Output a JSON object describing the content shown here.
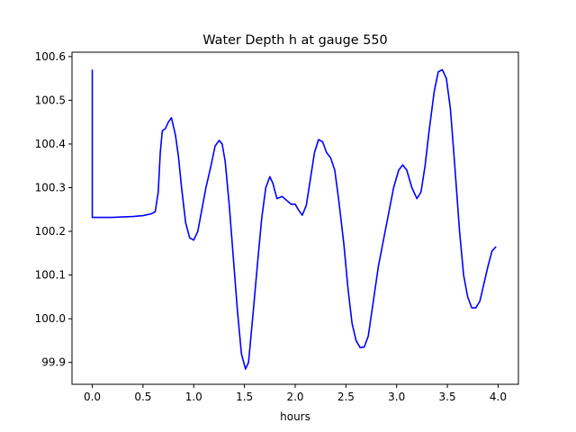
{
  "chart_data": {
    "type": "line",
    "title": "Water Depth h at gauge 550",
    "xlabel": "hours",
    "ylabel": "",
    "xlim": [
      -0.2,
      4.2
    ],
    "ylim": [
      99.85,
      100.61
    ],
    "x_ticks": [
      0.0,
      0.5,
      1.0,
      1.5,
      2.0,
      2.5,
      3.0,
      3.5,
      4.0
    ],
    "x_tick_labels": [
      "0.0",
      "0.5",
      "1.0",
      "1.5",
      "2.0",
      "2.5",
      "3.0",
      "3.5",
      "4.0"
    ],
    "y_ticks": [
      99.9,
      100.0,
      100.1,
      100.2,
      100.3,
      100.4,
      100.5,
      100.6
    ],
    "y_tick_labels": [
      "99.9",
      "100.0",
      "100.1",
      "100.2",
      "100.3",
      "100.4",
      "100.5",
      "100.6"
    ],
    "grid": false,
    "series": [
      {
        "color": "#0000ff",
        "points": [
          [
            0.0,
            100.57
          ],
          [
            0.0,
            100.232
          ],
          [
            0.2,
            100.232
          ],
          [
            0.4,
            100.234
          ],
          [
            0.5,
            100.236
          ],
          [
            0.58,
            100.24
          ],
          [
            0.62,
            100.245
          ],
          [
            0.65,
            100.29
          ],
          [
            0.67,
            100.38
          ],
          [
            0.69,
            100.43
          ],
          [
            0.72,
            100.435
          ],
          [
            0.75,
            100.45
          ],
          [
            0.78,
            100.46
          ],
          [
            0.82,
            100.42
          ],
          [
            0.85,
            100.37
          ],
          [
            0.88,
            100.3
          ],
          [
            0.92,
            100.22
          ],
          [
            0.96,
            100.185
          ],
          [
            1.0,
            100.18
          ],
          [
            1.04,
            100.2
          ],
          [
            1.08,
            100.25
          ],
          [
            1.12,
            100.3
          ],
          [
            1.17,
            100.35
          ],
          [
            1.21,
            100.395
          ],
          [
            1.25,
            100.408
          ],
          [
            1.28,
            100.4
          ],
          [
            1.31,
            100.36
          ],
          [
            1.35,
            100.26
          ],
          [
            1.39,
            100.14
          ],
          [
            1.43,
            100.02
          ],
          [
            1.47,
            99.92
          ],
          [
            1.51,
            99.885
          ],
          [
            1.54,
            99.9
          ],
          [
            1.58,
            100.0
          ],
          [
            1.63,
            100.13
          ],
          [
            1.67,
            100.23
          ],
          [
            1.71,
            100.3
          ],
          [
            1.75,
            100.325
          ],
          [
            1.78,
            100.31
          ],
          [
            1.82,
            100.275
          ],
          [
            1.87,
            100.28
          ],
          [
            1.92,
            100.27
          ],
          [
            1.96,
            100.262
          ],
          [
            2.0,
            100.262
          ],
          [
            2.03,
            100.25
          ],
          [
            2.07,
            100.237
          ],
          [
            2.11,
            100.26
          ],
          [
            2.15,
            100.32
          ],
          [
            2.19,
            100.38
          ],
          [
            2.23,
            100.41
          ],
          [
            2.27,
            100.405
          ],
          [
            2.31,
            100.38
          ],
          [
            2.35,
            100.368
          ],
          [
            2.39,
            100.34
          ],
          [
            2.43,
            100.27
          ],
          [
            2.48,
            100.17
          ],
          [
            2.52,
            100.07
          ],
          [
            2.56,
            99.99
          ],
          [
            2.6,
            99.95
          ],
          [
            2.64,
            99.934
          ],
          [
            2.68,
            99.935
          ],
          [
            2.72,
            99.96
          ],
          [
            2.77,
            100.04
          ],
          [
            2.82,
            100.12
          ],
          [
            2.87,
            100.18
          ],
          [
            2.92,
            100.24
          ],
          [
            2.97,
            100.3
          ],
          [
            3.02,
            100.34
          ],
          [
            3.06,
            100.352
          ],
          [
            3.1,
            100.34
          ],
          [
            3.15,
            100.3
          ],
          [
            3.2,
            100.275
          ],
          [
            3.24,
            100.29
          ],
          [
            3.28,
            100.35
          ],
          [
            3.32,
            100.43
          ],
          [
            3.37,
            100.52
          ],
          [
            3.41,
            100.565
          ],
          [
            3.45,
            100.57
          ],
          [
            3.49,
            100.55
          ],
          [
            3.53,
            100.48
          ],
          [
            3.57,
            100.36
          ],
          [
            3.62,
            100.2
          ],
          [
            3.66,
            100.1
          ],
          [
            3.7,
            100.05
          ],
          [
            3.74,
            100.025
          ],
          [
            3.78,
            100.025
          ],
          [
            3.82,
            100.04
          ],
          [
            3.86,
            100.08
          ],
          [
            3.9,
            100.12
          ],
          [
            3.94,
            100.155
          ],
          [
            3.98,
            100.165
          ]
        ]
      }
    ]
  }
}
